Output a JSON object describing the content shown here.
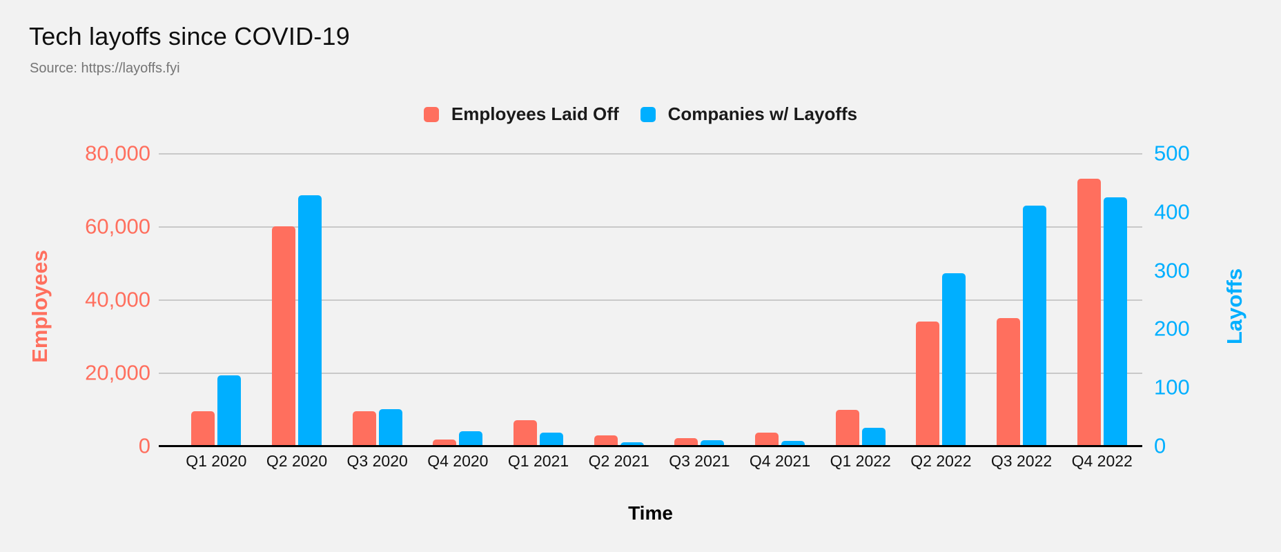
{
  "header": {
    "title": "Tech layoffs since COVID-19",
    "source": "Source: https://layoffs.fyi"
  },
  "legend": {
    "items": [
      {
        "label": "Employees Laid Off",
        "color": "#FF6F5E"
      },
      {
        "label": "Companies w/ Layoffs",
        "color": "#00AFFF"
      }
    ]
  },
  "chart_data": {
    "type": "bar",
    "title": "Tech layoffs since COVID-19",
    "subtitle": "Source: https://layoffs.fyi",
    "categories": [
      "Q1 2020",
      "Q2 2020",
      "Q3 2020",
      "Q4 2020",
      "Q1 2021",
      "Q2 2021",
      "Q3 2021",
      "Q4 2021",
      "Q1 2022",
      "Q2 2022",
      "Q3 2022",
      "Q4 2022"
    ],
    "series": [
      {
        "name": "Employees Laid Off",
        "axis": "left",
        "color": "#FF6F5E",
        "values": [
          9500,
          60000,
          9500,
          1700,
          7000,
          2800,
          2000,
          3500,
          9800,
          34000,
          35000,
          73000
        ]
      },
      {
        "name": "Companies w/ Layoffs",
        "axis": "right",
        "color": "#00AFFF",
        "values": [
          120,
          428,
          62,
          25,
          23,
          6,
          10,
          8,
          31,
          295,
          410,
          424
        ]
      }
    ],
    "xlabel": "Time",
    "axes": {
      "left": {
        "label": "Employees",
        "min": 0,
        "max": 80000,
        "ticks": [
          0,
          20000,
          40000,
          60000,
          80000
        ],
        "tick_labels": [
          "0",
          "20,000",
          "40,000",
          "60,000",
          "80,000"
        ],
        "color": "#FF6F5E"
      },
      "right": {
        "label": "Layoffs",
        "min": 0,
        "max": 500,
        "ticks": [
          0,
          100,
          200,
          300,
          400,
          500
        ],
        "tick_labels": [
          "0",
          "100",
          "200",
          "300",
          "400",
          "500"
        ],
        "color": "#00AFFF"
      }
    },
    "layout": {
      "grid": "horizontal",
      "grid_aligned_to": "left-axis",
      "legend_position": "top-center",
      "background": "#F2F2F2",
      "gridline_color": "#C9C9C9"
    }
  }
}
